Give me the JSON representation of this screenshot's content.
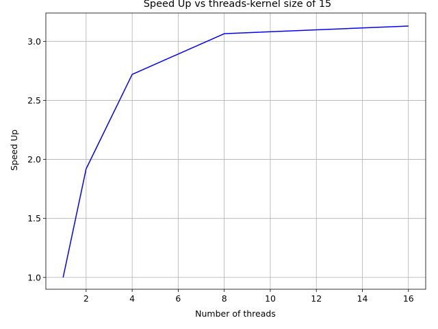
{
  "chart_data": {
    "type": "line",
    "title": "Speed Up vs threads-kernel size of 15",
    "xlabel": "Number of threads",
    "ylabel": "Speed Up",
    "x": [
      1,
      2,
      4,
      8,
      16
    ],
    "series": [
      {
        "values": [
          1.0,
          1.92,
          2.72,
          3.065,
          3.13
        ],
        "color": "#0000ff"
      }
    ],
    "xlim": [
      0.25,
      16.75
    ],
    "ylim": [
      0.9,
      3.24
    ],
    "xticks": [
      2,
      4,
      6,
      8,
      10,
      12,
      14,
      16
    ],
    "xtick_labels": [
      "2",
      "4",
      "6",
      "8",
      "10",
      "12",
      "14",
      "16"
    ],
    "yticks": [
      1.0,
      1.5,
      2.0,
      2.5,
      3.0
    ],
    "ytick_labels": [
      "1.0",
      "1.5",
      "2.0",
      "2.5",
      "3.0"
    ],
    "grid": true,
    "grid_color": "#b0b0b0",
    "legend": false
  }
}
